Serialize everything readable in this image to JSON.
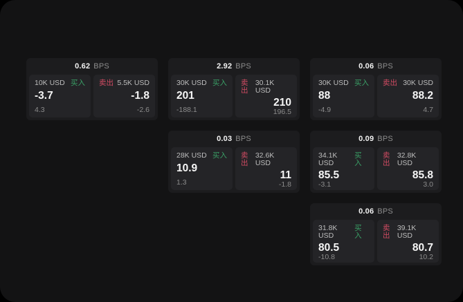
{
  "labels": {
    "bps_unit": "BPS",
    "buy": "买入",
    "sell": "卖出"
  },
  "colors": {
    "page_background": "#131314",
    "card_background": "#1c1c1e",
    "panel_background": "#242427",
    "buy_accent": "#3a9f66",
    "sell_accent": "#d14b63"
  },
  "cards": [
    {
      "bps": "0.62",
      "row": 1,
      "col": 1,
      "buy": {
        "amount": "10K USD",
        "value": "-3.7",
        "delta": "4.3"
      },
      "sell": {
        "amount": "5.5K USD",
        "value": "-1.8",
        "delta": "-2.6"
      }
    },
    {
      "bps": "2.92",
      "row": 1,
      "col": 2,
      "buy": {
        "amount": "30K USD",
        "value": "201",
        "delta": "-188.1"
      },
      "sell": {
        "amount": "30.1K USD",
        "value": "210",
        "delta": "196.5"
      }
    },
    {
      "bps": "0.06",
      "row": 1,
      "col": 3,
      "buy": {
        "amount": "30K USD",
        "value": "88",
        "delta": "-4.9"
      },
      "sell": {
        "amount": "30K USD",
        "value": "88.2",
        "delta": "4.7"
      }
    },
    {
      "bps": "0.03",
      "row": 2,
      "col": 2,
      "buy": {
        "amount": "28K USD",
        "value": "10.9",
        "delta": "1.3"
      },
      "sell": {
        "amount": "32.6K USD",
        "value": "11",
        "delta": "-1.8"
      }
    },
    {
      "bps": "0.09",
      "row": 2,
      "col": 3,
      "buy": {
        "amount": "34.1K USD",
        "value": "85.5",
        "delta": "-3.1"
      },
      "sell": {
        "amount": "32.8K USD",
        "value": "85.8",
        "delta": "3.0"
      }
    },
    {
      "bps": "0.06",
      "row": 3,
      "col": 3,
      "buy": {
        "amount": "31.8K USD",
        "value": "80.5",
        "delta": "-10.8"
      },
      "sell": {
        "amount": "39.1K USD",
        "value": "80.7",
        "delta": "10.2"
      }
    }
  ]
}
